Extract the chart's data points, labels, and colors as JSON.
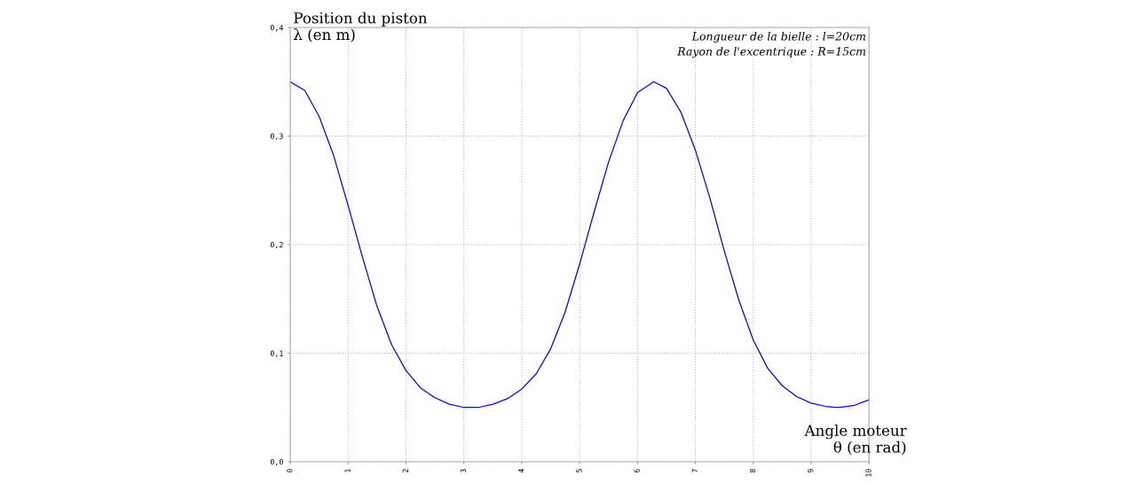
{
  "chart_data": {
    "type": "line",
    "xlabel": "Angle moteur\nθ (en rad)",
    "ylabel": "Position du piston\nλ (en m)",
    "annotations": [
      "Longueur de la bielle : l=20cm",
      "Rayon de l'excentrique : R=15cm"
    ],
    "series": [
      {
        "color": "#0000ff",
        "x": [
          0,
          0.25,
          0.5,
          0.75,
          1,
          1.25,
          1.5,
          1.75,
          2,
          2.25,
          2.5,
          2.75,
          3,
          3.14,
          3.25,
          3.5,
          3.75,
          4,
          4.25,
          4.5,
          4.75,
          5,
          5.25,
          5.5,
          5.75,
          6,
          6.28,
          6.5,
          6.75,
          7,
          7.25,
          7.5,
          7.75,
          8,
          8.25,
          8.5,
          8.75,
          9,
          9.25,
          9.42,
          9.5,
          9.75,
          10
        ],
        "values": [
          0.35,
          0.342,
          0.318,
          0.282,
          0.236,
          0.188,
          0.143,
          0.108,
          0.084,
          0.068,
          0.059,
          0.053,
          0.05,
          0.05,
          0.05,
          0.053,
          0.058,
          0.067,
          0.081,
          0.104,
          0.138,
          0.182,
          0.23,
          0.276,
          0.314,
          0.34,
          0.35,
          0.344,
          0.322,
          0.287,
          0.243,
          0.194,
          0.149,
          0.112,
          0.086,
          0.07,
          0.06,
          0.054,
          0.051,
          0.05,
          0.05,
          0.052,
          0.057
        ]
      }
    ],
    "xlim": [
      0,
      10
    ],
    "ylim": [
      0,
      0.4
    ],
    "xticks": [
      0,
      1,
      2,
      3,
      4,
      5,
      6,
      7,
      8,
      9,
      10
    ],
    "yticks": [
      {
        "value": 0,
        "label": "0,0"
      },
      {
        "value": 0.1,
        "label": "0,1"
      },
      {
        "value": 0.2,
        "label": "0,2"
      },
      {
        "value": 0.3,
        "label": "0,3"
      },
      {
        "value": 0.4,
        "label": "0,4"
      }
    ],
    "grid": true,
    "legend": false,
    "marker": "none",
    "line_style": "solid"
  }
}
